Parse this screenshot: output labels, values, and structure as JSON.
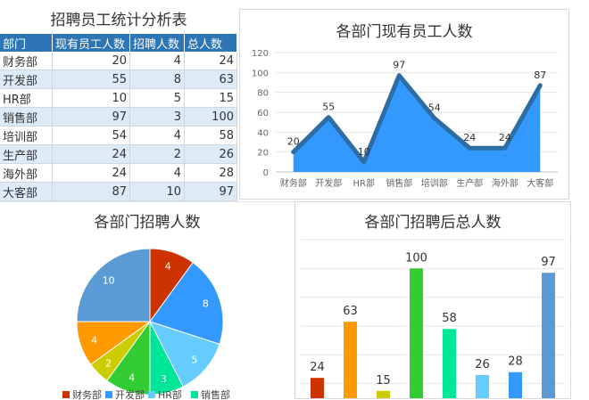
{
  "table": {
    "title": "招聘员工统计分析表",
    "headers": [
      "部门",
      "现有员工人数",
      "招聘人数",
      "总人数"
    ],
    "rows": [
      [
        "财务部",
        20,
        4,
        24
      ],
      [
        "开发部",
        55,
        8,
        63
      ],
      [
        "HR部",
        10,
        5,
        15
      ],
      [
        "销售部",
        97,
        3,
        100
      ],
      [
        "培训部",
        54,
        4,
        58
      ],
      [
        "生产部",
        24,
        2,
        26
      ],
      [
        "海外部",
        24,
        4,
        28
      ],
      [
        "大客部",
        87,
        10,
        97
      ]
    ]
  },
  "chart_data": [
    {
      "type": "area",
      "title": "各部门现有员工人数",
      "categories": [
        "财务部",
        "开发部",
        "HR部",
        "销售部",
        "培训部",
        "生产部",
        "海外部",
        "大客部"
      ],
      "values": [
        20,
        55,
        10,
        97,
        54,
        24,
        24,
        87
      ],
      "ylim": [
        0,
        120
      ],
      "yticks": [
        0,
        20,
        40,
        60,
        80,
        100,
        120
      ],
      "grid": true,
      "colors": {
        "fill": "#3399ff",
        "line": "#2e6da4"
      }
    },
    {
      "type": "pie",
      "title": "各部门招聘人数",
      "categories": [
        "财务部",
        "开发部",
        "HR部",
        "销售部",
        "培训部",
        "生产部",
        "海外部",
        "大客部"
      ],
      "values": [
        4,
        8,
        5,
        3,
        4,
        2,
        4,
        10
      ],
      "legend_visible": [
        "财务部",
        "开发部",
        "HR部",
        "销售部"
      ],
      "colors": [
        "#cc3300",
        "#3399ff",
        "#66ccff",
        "#00e699",
        "#33cc33",
        "#cccc00",
        "#ff9900",
        "#5b9bd5"
      ]
    },
    {
      "type": "bar",
      "title": "各部门招聘后总人数",
      "categories": [
        "财务部",
        "开发部",
        "HR部",
        "销售部",
        "培训部",
        "生产部",
        "海外部",
        "大客部"
      ],
      "values": [
        24,
        63,
        15,
        100,
        58,
        26,
        28,
        97
      ],
      "ylim": [
        0,
        120
      ],
      "grid": true,
      "colors": [
        "#cc3300",
        "#ff9900",
        "#cccc00",
        "#33cc33",
        "#00e699",
        "#66ccff",
        "#3399ff",
        "#5b9bd5"
      ]
    }
  ]
}
